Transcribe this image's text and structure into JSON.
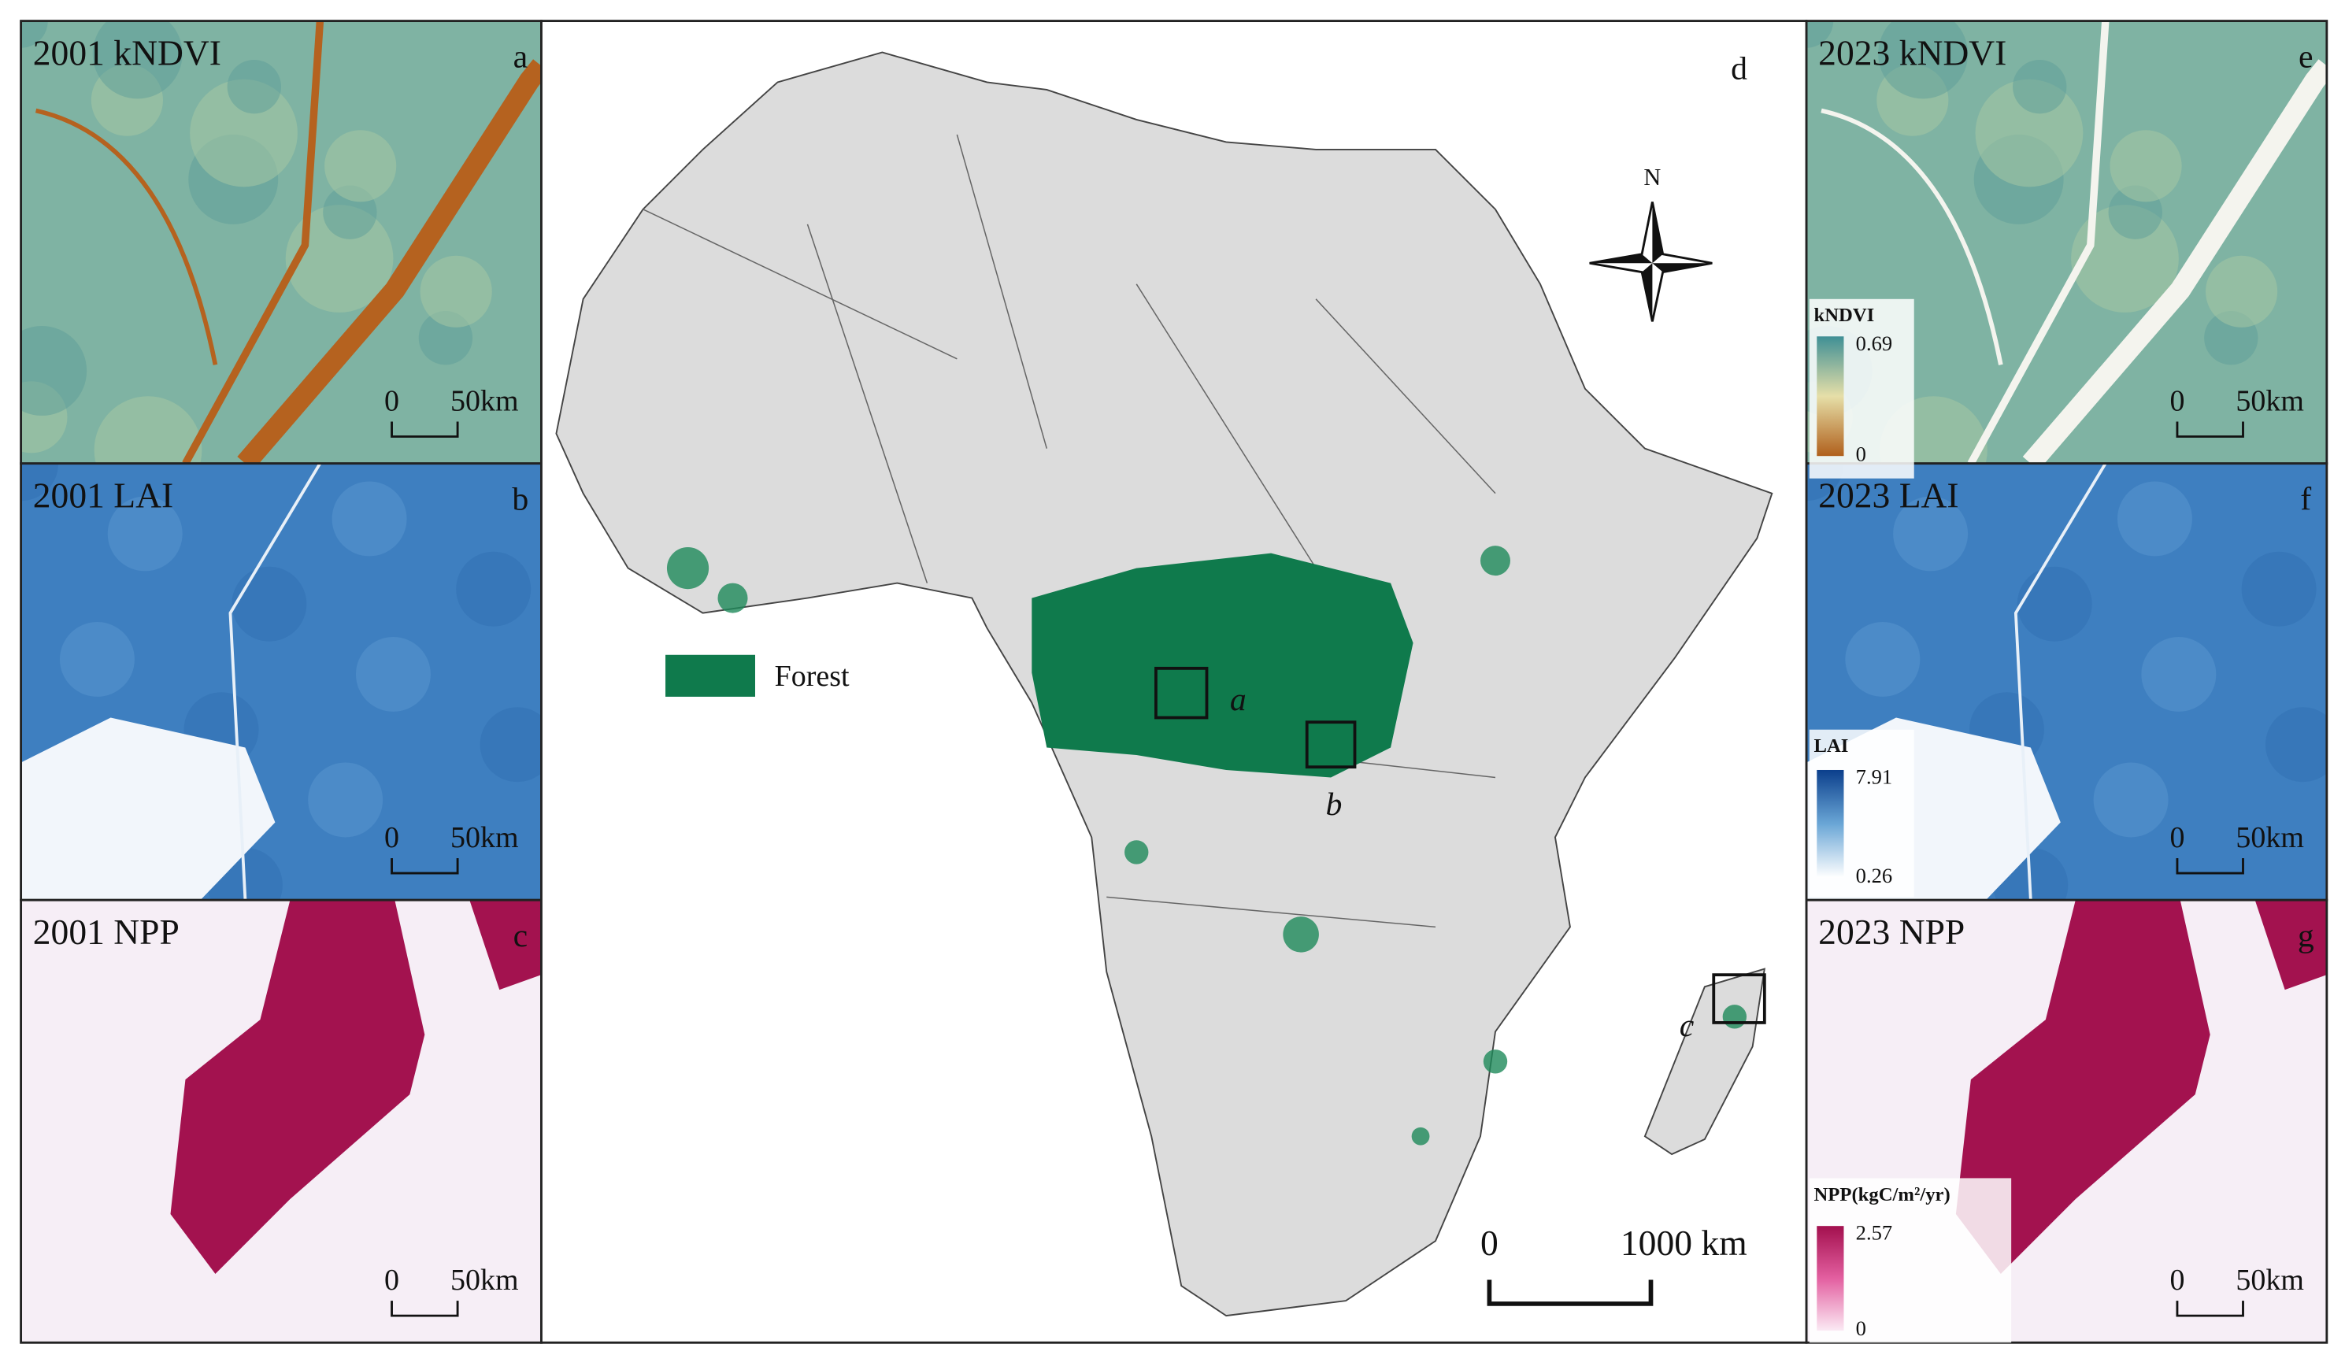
{
  "panels": [
    {
      "title": "2001 kNDVI",
      "letter": "a",
      "scale_zero": "0",
      "scale_label": "50km"
    },
    {
      "title": "2001 LAI",
      "letter": "b",
      "scale_zero": "0",
      "scale_label": "50km"
    },
    {
      "title": "2001 NPP",
      "letter": "c",
      "scale_zero": "0",
      "scale_label": "50km"
    },
    {
      "title": "2023 kNDVI",
      "letter": "e",
      "scale_zero": "0",
      "scale_label": "50km"
    },
    {
      "title": "2023 LAI",
      "letter": "f",
      "scale_zero": "0",
      "scale_label": "50km"
    },
    {
      "title": "2023 NPP",
      "letter": "g",
      "scale_zero": "0",
      "scale_label": "50km"
    }
  ],
  "map": {
    "letter": "d",
    "north": "N",
    "legend": "Forest",
    "boxes": [
      "a",
      "b",
      "c"
    ],
    "scale_zero": "0",
    "scale_label": "1000 km"
  },
  "legends": [
    {
      "title": "kNDVI",
      "max": "0.69",
      "min": "0"
    },
    {
      "title": "LAI",
      "max": "7.91",
      "min": "0.26"
    },
    {
      "title": "NPP(kgC/m²/yr)",
      "max": "2.57",
      "min": "0"
    }
  ]
}
